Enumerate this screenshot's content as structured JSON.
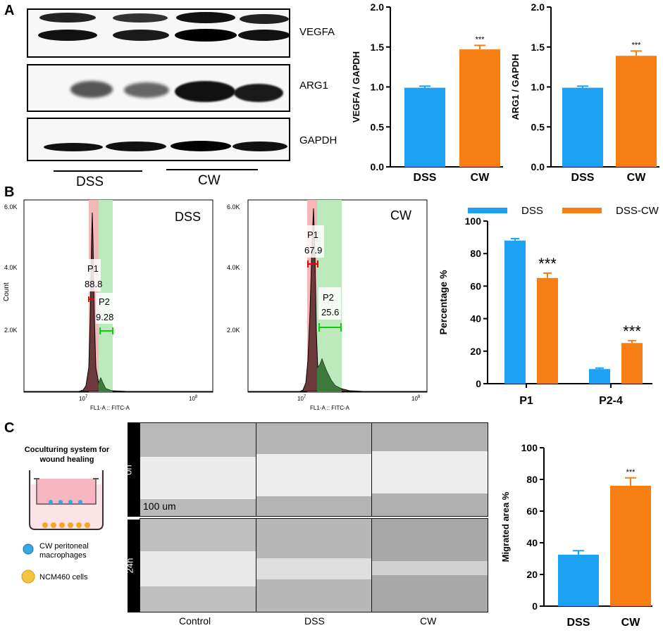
{
  "panels": {
    "A": "A",
    "B": "B",
    "C": "C"
  },
  "blots": {
    "labels": [
      "VEGFA",
      "ARG1",
      "GAPDH"
    ],
    "groups": [
      "DSS",
      "CW"
    ]
  },
  "flow": {
    "dss": {
      "title": "DSS",
      "ymax": "6.0K",
      "yticks": [
        "6.0K",
        "4.0K",
        "2.0K"
      ],
      "ylabel": "Count",
      "xlabel": "FL1-A :: FITC-A",
      "xt1": "10",
      "xt2": "10",
      "exp1": "7",
      "exp2": "8",
      "p1": "P1",
      "v1": "88.8",
      "p2": "P2",
      "v2": "9.28"
    },
    "cw": {
      "title": "CW",
      "ymax": "6.0K",
      "yticks": [
        "6.0K",
        "4.0K",
        "2.0K"
      ],
      "ylabel": "",
      "xlabel": "FL1-A :: FITC-A",
      "xt1": "10",
      "xt2": "10",
      "exp1": "7",
      "exp2": "8",
      "p1": "P1",
      "v1": "67.9",
      "p2": "P2",
      "v2": "25.6"
    }
  },
  "coculture": {
    "title_line1": "Coculturing system for",
    "title_line2": "wound healing",
    "legend1a": "CW peritoneal",
    "legend1b": "macrophages",
    "legend2": "NCM460 cells"
  },
  "scratch": {
    "rows": [
      "0h",
      "24h"
    ],
    "cols": [
      "Control",
      "DSS",
      "CW"
    ],
    "scale": "100 um"
  },
  "colors": {
    "blue": "#1da1f2",
    "orange": "#f77e12"
  },
  "chart_data": [
    {
      "type": "bar",
      "id": "vegfa",
      "categories": [
        "DSS",
        "CW"
      ],
      "values": [
        0.99,
        1.47
      ],
      "errors": [
        0.02,
        0.05
      ],
      "ylabel": "VEGFA / GAPDH",
      "ylim": [
        0,
        2.0
      ],
      "yticks": [
        "0.0",
        "0.5",
        "1.0",
        "1.5",
        "2.0"
      ],
      "annotations": [
        "",
        "***"
      ]
    },
    {
      "type": "bar",
      "id": "arg1",
      "categories": [
        "DSS",
        "CW"
      ],
      "values": [
        0.99,
        1.39
      ],
      "errors": [
        0.02,
        0.06
      ],
      "ylabel": "ARG1 / GAPDH",
      "ylim": [
        0,
        2.0
      ],
      "yticks": [
        "0.0",
        "0.5",
        "1.0",
        "1.5",
        "2.0"
      ],
      "annotations": [
        "",
        "***"
      ]
    },
    {
      "type": "bar",
      "id": "pct",
      "categories": [
        "P1",
        "P2-4"
      ],
      "series": [
        {
          "name": "DSS",
          "values": [
            88,
            9
          ],
          "errors": [
            1.2,
            0.6
          ]
        },
        {
          "name": "DSS-CW",
          "values": [
            65,
            25
          ],
          "errors": [
            3,
            1.5
          ]
        }
      ],
      "ylabel": "Percentage %",
      "ylim": [
        0,
        100
      ],
      "yticks": [
        "0",
        "20",
        "40",
        "60",
        "80",
        "100"
      ],
      "annotations": [
        "***",
        "***"
      ]
    },
    {
      "type": "bar",
      "id": "migr",
      "categories": [
        "DSS",
        "CW"
      ],
      "values": [
        32.5,
        76
      ],
      "errors": [
        2.5,
        5
      ],
      "ylabel": "Migrated area %",
      "ylim": [
        0,
        100
      ],
      "yticks": [
        "0",
        "20",
        "40",
        "60",
        "80",
        "100"
      ],
      "annotations": [
        "",
        "***"
      ]
    }
  ]
}
